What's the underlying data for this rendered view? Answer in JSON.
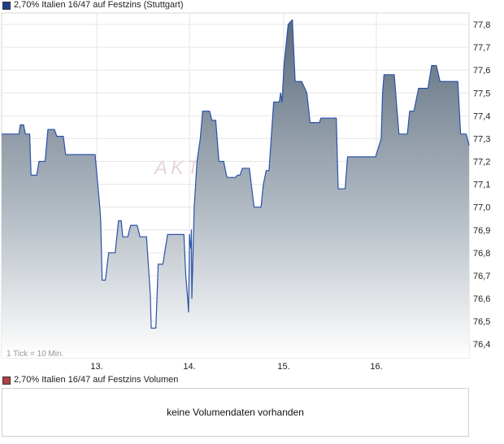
{
  "legend": {
    "price_label": "2,70% Italien 16/47 auf Festzins (Stuttgart)",
    "price_color": "#1f3f8c",
    "volume_label": "2,70% Italien 16/47 auf Festzins Volumen",
    "volume_color": "#b5404a"
  },
  "volume_message": "keine Volumendaten vorhanden",
  "footnote": "1 Tick = 10 Min.",
  "watermark": "AKT",
  "chart_data": {
    "type": "area",
    "title": "2,70% Italien 16/47 auf Festzins (Stuttgart)",
    "ylim": [
      76.34,
      77.85
    ],
    "grid": true,
    "y_ticks": [
      "77,8",
      "77,7",
      "77,6",
      "77,5",
      "77,4",
      "77,3",
      "77,2",
      "77,1",
      "77,0",
      "76,9",
      "76,8",
      "76,7",
      "76,6",
      "76,5",
      "76,4"
    ],
    "x_ticks": [
      {
        "label": "13.",
        "pos": 0.2035
      },
      {
        "label": "14.",
        "pos": 0.4017
      },
      {
        "label": "15.",
        "pos": 0.6035
      },
      {
        "label": "16.",
        "pos": 0.8017
      }
    ],
    "x_range": [
      0,
      1
    ],
    "colors": {
      "line": "#2a52a8",
      "fill_top": "#5a6b7c",
      "fill_bottom": "#ffffff"
    },
    "series": [
      {
        "points": [
          [
            0.0,
            77.32
          ],
          [
            0.037,
            77.32
          ],
          [
            0.04,
            77.36
          ],
          [
            0.047,
            77.36
          ],
          [
            0.051,
            77.32
          ],
          [
            0.06,
            77.32
          ],
          [
            0.063,
            77.14
          ],
          [
            0.075,
            77.14
          ],
          [
            0.08,
            77.2
          ],
          [
            0.093,
            77.2
          ],
          [
            0.099,
            77.34
          ],
          [
            0.113,
            77.34
          ],
          [
            0.118,
            77.31
          ],
          [
            0.132,
            77.31
          ],
          [
            0.137,
            77.23
          ],
          [
            0.2,
            77.23
          ],
          [
            0.21,
            77.0
          ],
          [
            0.212,
            76.94
          ],
          [
            0.215,
            76.68
          ],
          [
            0.222,
            76.68
          ],
          [
            0.229,
            76.8
          ],
          [
            0.243,
            76.8
          ],
          [
            0.25,
            76.94
          ],
          [
            0.256,
            76.94
          ],
          [
            0.259,
            76.87
          ],
          [
            0.27,
            76.87
          ],
          [
            0.276,
            76.92
          ],
          [
            0.29,
            76.92
          ],
          [
            0.296,
            76.87
          ],
          [
            0.31,
            76.87
          ],
          [
            0.318,
            76.62
          ],
          [
            0.32,
            76.47
          ],
          [
            0.33,
            76.47
          ],
          [
            0.335,
            76.75
          ],
          [
            0.345,
            76.75
          ],
          [
            0.355,
            76.88
          ],
          [
            0.39,
            76.88
          ],
          [
            0.394,
            76.7
          ],
          [
            0.398,
            76.6
          ],
          [
            0.4,
            76.54
          ],
          [
            0.402,
            76.88
          ],
          [
            0.403,
            76.85
          ],
          [
            0.405,
            76.82
          ],
          [
            0.406,
            76.9
          ],
          [
            0.407,
            76.6
          ],
          [
            0.412,
            77.0
          ],
          [
            0.418,
            77.2
          ],
          [
            0.425,
            77.3
          ],
          [
            0.43,
            77.42
          ],
          [
            0.445,
            77.42
          ],
          [
            0.45,
            77.38
          ],
          [
            0.458,
            77.38
          ],
          [
            0.465,
            77.2
          ],
          [
            0.475,
            77.2
          ],
          [
            0.482,
            77.13
          ],
          [
            0.5,
            77.13
          ],
          [
            0.505,
            77.14
          ],
          [
            0.51,
            77.14
          ],
          [
            0.515,
            77.17
          ],
          [
            0.53,
            77.17
          ],
          [
            0.54,
            77.0
          ],
          [
            0.555,
            77.0
          ],
          [
            0.56,
            77.1
          ],
          [
            0.566,
            77.16
          ],
          [
            0.572,
            77.16
          ],
          [
            0.58,
            77.4
          ],
          [
            0.582,
            77.46
          ],
          [
            0.594,
            77.46
          ],
          [
            0.597,
            77.5
          ],
          [
            0.6,
            77.46
          ],
          [
            0.604,
            77.62
          ],
          [
            0.608,
            77.7
          ],
          [
            0.613,
            77.8
          ],
          [
            0.622,
            77.82
          ],
          [
            0.628,
            77.55
          ],
          [
            0.642,
            77.55
          ],
          [
            0.653,
            77.5
          ],
          [
            0.66,
            77.37
          ],
          [
            0.68,
            77.37
          ],
          [
            0.683,
            77.39
          ],
          [
            0.716,
            77.39
          ],
          [
            0.72,
            77.08
          ],
          [
            0.735,
            77.08
          ],
          [
            0.74,
            77.22
          ],
          [
            0.8,
            77.22
          ],
          [
            0.812,
            77.3
          ],
          [
            0.815,
            77.5
          ],
          [
            0.818,
            77.58
          ],
          [
            0.84,
            77.58
          ],
          [
            0.85,
            77.32
          ],
          [
            0.868,
            77.32
          ],
          [
            0.873,
            77.42
          ],
          [
            0.882,
            77.42
          ],
          [
            0.892,
            77.52
          ],
          [
            0.912,
            77.52
          ],
          [
            0.92,
            77.62
          ],
          [
            0.93,
            77.62
          ],
          [
            0.938,
            77.55
          ],
          [
            0.976,
            77.55
          ],
          [
            0.982,
            77.32
          ],
          [
            0.994,
            77.32
          ],
          [
            1.0,
            77.27
          ]
        ]
      }
    ]
  }
}
